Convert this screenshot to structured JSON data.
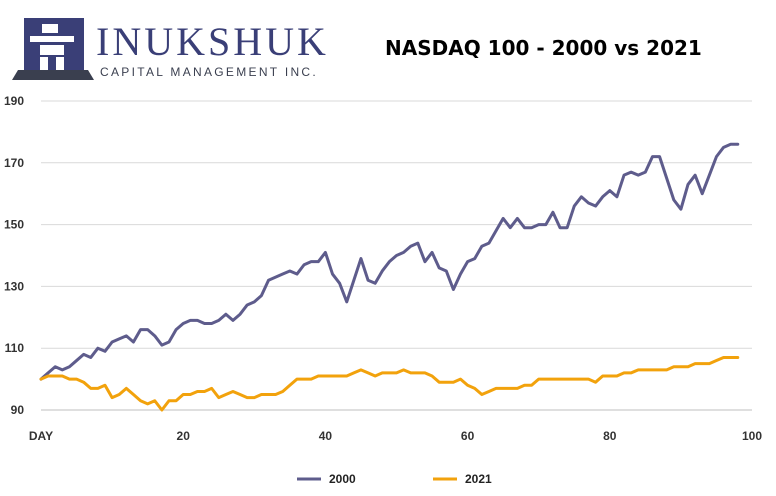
{
  "logo": {
    "name": "INUKSHUK",
    "tagline": "CAPITAL MANAGEMENT INC."
  },
  "colors": {
    "logo_blue": "#3a3f77",
    "logo_dark": "#3a3f4f",
    "series_2000": "#5e5c8c",
    "series_2021": "#f2a20c",
    "axis": "#bfbfbf",
    "gridline": "#d9d9d9"
  },
  "chart_data": {
    "type": "line",
    "title": "NASDAQ 100 - 2000 vs 2021",
    "xlabel": "DAY",
    "xlim": [
      0,
      100
    ],
    "ylim": [
      90,
      190
    ],
    "xticks": [
      20,
      40,
      60,
      80,
      100
    ],
    "yticks": [
      90,
      110,
      130,
      150,
      170,
      190
    ],
    "grid": "horizontal",
    "legend": "bottom",
    "series": [
      {
        "name": "2000",
        "color": "#5e5c8c",
        "values": [
          100,
          102,
          104,
          103,
          104,
          106,
          108,
          107,
          110,
          109,
          112,
          113,
          114,
          112,
          116,
          116,
          114,
          111,
          112,
          116,
          118,
          119,
          119,
          118,
          118,
          119,
          121,
          119,
          121,
          124,
          125,
          127,
          132,
          133,
          134,
          135,
          134,
          137,
          138,
          138,
          141,
          134,
          131,
          125,
          132,
          139,
          132,
          131,
          135,
          138,
          140,
          141,
          143,
          144,
          138,
          141,
          136,
          135,
          129,
          134,
          138,
          139,
          143,
          144,
          148,
          152,
          149,
          152,
          149,
          149,
          150,
          150,
          154,
          149,
          149,
          156,
          159,
          157,
          156,
          159,
          161,
          159,
          166,
          167,
          166,
          167,
          172,
          172,
          165,
          158,
          155,
          163,
          166,
          160,
          166,
          172,
          175,
          176,
          176
        ]
      },
      {
        "name": "2021",
        "color": "#f2a20c",
        "values": [
          100,
          101,
          101,
          101,
          100,
          100,
          99,
          97,
          97,
          98,
          94,
          95,
          97,
          95,
          93,
          92,
          93,
          90,
          93,
          93,
          95,
          95,
          96,
          96,
          97,
          94,
          95,
          96,
          95,
          94,
          94,
          95,
          95,
          95,
          96,
          98,
          100,
          100,
          100,
          101,
          101,
          101,
          101,
          101,
          102,
          103,
          102,
          101,
          102,
          102,
          102,
          103,
          102,
          102,
          102,
          101,
          99,
          99,
          99,
          100,
          98,
          97,
          95,
          96,
          97,
          97,
          97,
          97,
          98,
          98,
          100,
          100,
          100,
          100,
          100,
          100,
          100,
          100,
          99,
          101,
          101,
          101,
          102,
          102,
          103,
          103,
          103,
          103,
          103,
          104,
          104,
          104,
          105,
          105,
          105,
          106,
          107,
          107,
          107
        ]
      }
    ]
  }
}
